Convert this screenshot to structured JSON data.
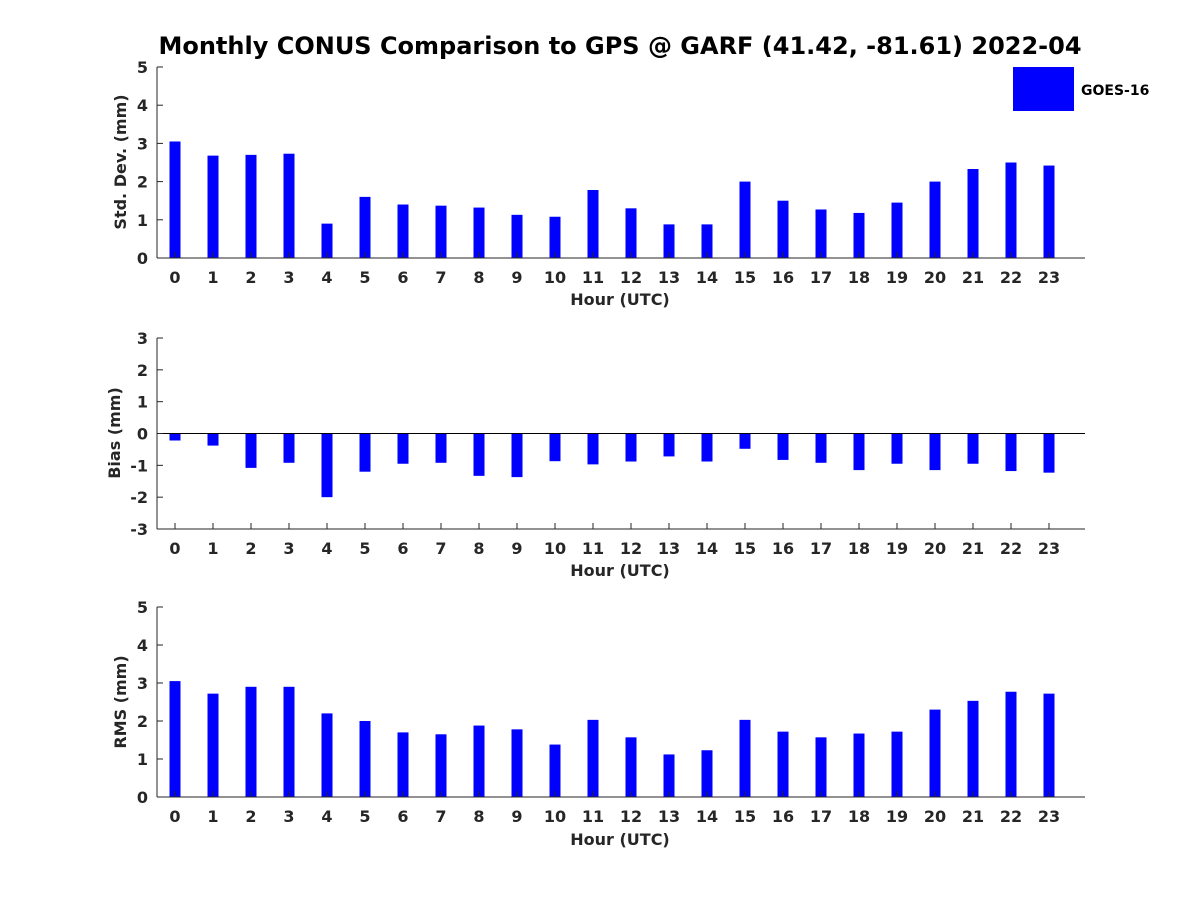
{
  "figure": {
    "title": "Monthly CONUS Comparison to GPS @ GARF (41.42, -81.61) 2022-04",
    "legend": {
      "label": "GOES-16",
      "placement": "top-right"
    }
  },
  "colors": {
    "bar": "#0000ff",
    "axis": "#262626",
    "zero_line": "#000000"
  },
  "chart_data": [
    {
      "type": "bar",
      "xlabel": "Hour (UTC)",
      "ylabel": "Std. Dev. (mm)",
      "categories": [
        "0",
        "1",
        "2",
        "3",
        "4",
        "5",
        "6",
        "7",
        "8",
        "9",
        "10",
        "11",
        "12",
        "13",
        "14",
        "15",
        "16",
        "17",
        "18",
        "19",
        "20",
        "21",
        "22",
        "23"
      ],
      "ylim": [
        0,
        5
      ],
      "yticks": [
        0,
        1,
        2,
        3,
        4,
        5
      ],
      "grid": false,
      "series": [
        {
          "name": "GOES-16",
          "values": [
            3.05,
            2.68,
            2.7,
            2.73,
            0.9,
            1.6,
            1.4,
            1.37,
            1.32,
            1.13,
            1.08,
            1.78,
            1.3,
            0.88,
            0.88,
            2.0,
            1.5,
            1.27,
            1.18,
            1.45,
            2.0,
            2.33,
            2.5,
            2.42
          ]
        }
      ]
    },
    {
      "type": "bar",
      "xlabel": "Hour (UTC)",
      "ylabel": "Bias (mm)",
      "categories": [
        "0",
        "1",
        "2",
        "3",
        "4",
        "5",
        "6",
        "7",
        "8",
        "9",
        "10",
        "11",
        "12",
        "13",
        "14",
        "15",
        "16",
        "17",
        "18",
        "19",
        "20",
        "21",
        "22",
        "23"
      ],
      "ylim": [
        -3,
        3
      ],
      "yticks": [
        -3,
        -2,
        -1,
        0,
        1,
        2,
        3
      ],
      "grid": false,
      "series": [
        {
          "name": "GOES-16",
          "values": [
            -0.22,
            -0.38,
            -1.08,
            -0.92,
            -2.0,
            -1.2,
            -0.95,
            -0.92,
            -1.33,
            -1.37,
            -0.87,
            -0.97,
            -0.88,
            -0.72,
            -0.88,
            -0.48,
            -0.83,
            -0.92,
            -1.15,
            -0.95,
            -1.15,
            -0.95,
            -1.18,
            -1.23
          ]
        }
      ]
    },
    {
      "type": "bar",
      "xlabel": "Hour (UTC)",
      "ylabel": "RMS (mm)",
      "categories": [
        "0",
        "1",
        "2",
        "3",
        "4",
        "5",
        "6",
        "7",
        "8",
        "9",
        "10",
        "11",
        "12",
        "13",
        "14",
        "15",
        "16",
        "17",
        "18",
        "19",
        "20",
        "21",
        "22",
        "23"
      ],
      "ylim": [
        0,
        5
      ],
      "yticks": [
        0,
        1,
        2,
        3,
        4,
        5
      ],
      "grid": false,
      "series": [
        {
          "name": "GOES-16",
          "values": [
            3.05,
            2.72,
            2.9,
            2.9,
            2.2,
            2.0,
            1.7,
            1.65,
            1.88,
            1.78,
            1.38,
            2.03,
            1.57,
            1.12,
            1.23,
            2.03,
            1.72,
            1.57,
            1.67,
            1.72,
            2.3,
            2.53,
            2.77,
            2.72
          ]
        }
      ]
    }
  ]
}
